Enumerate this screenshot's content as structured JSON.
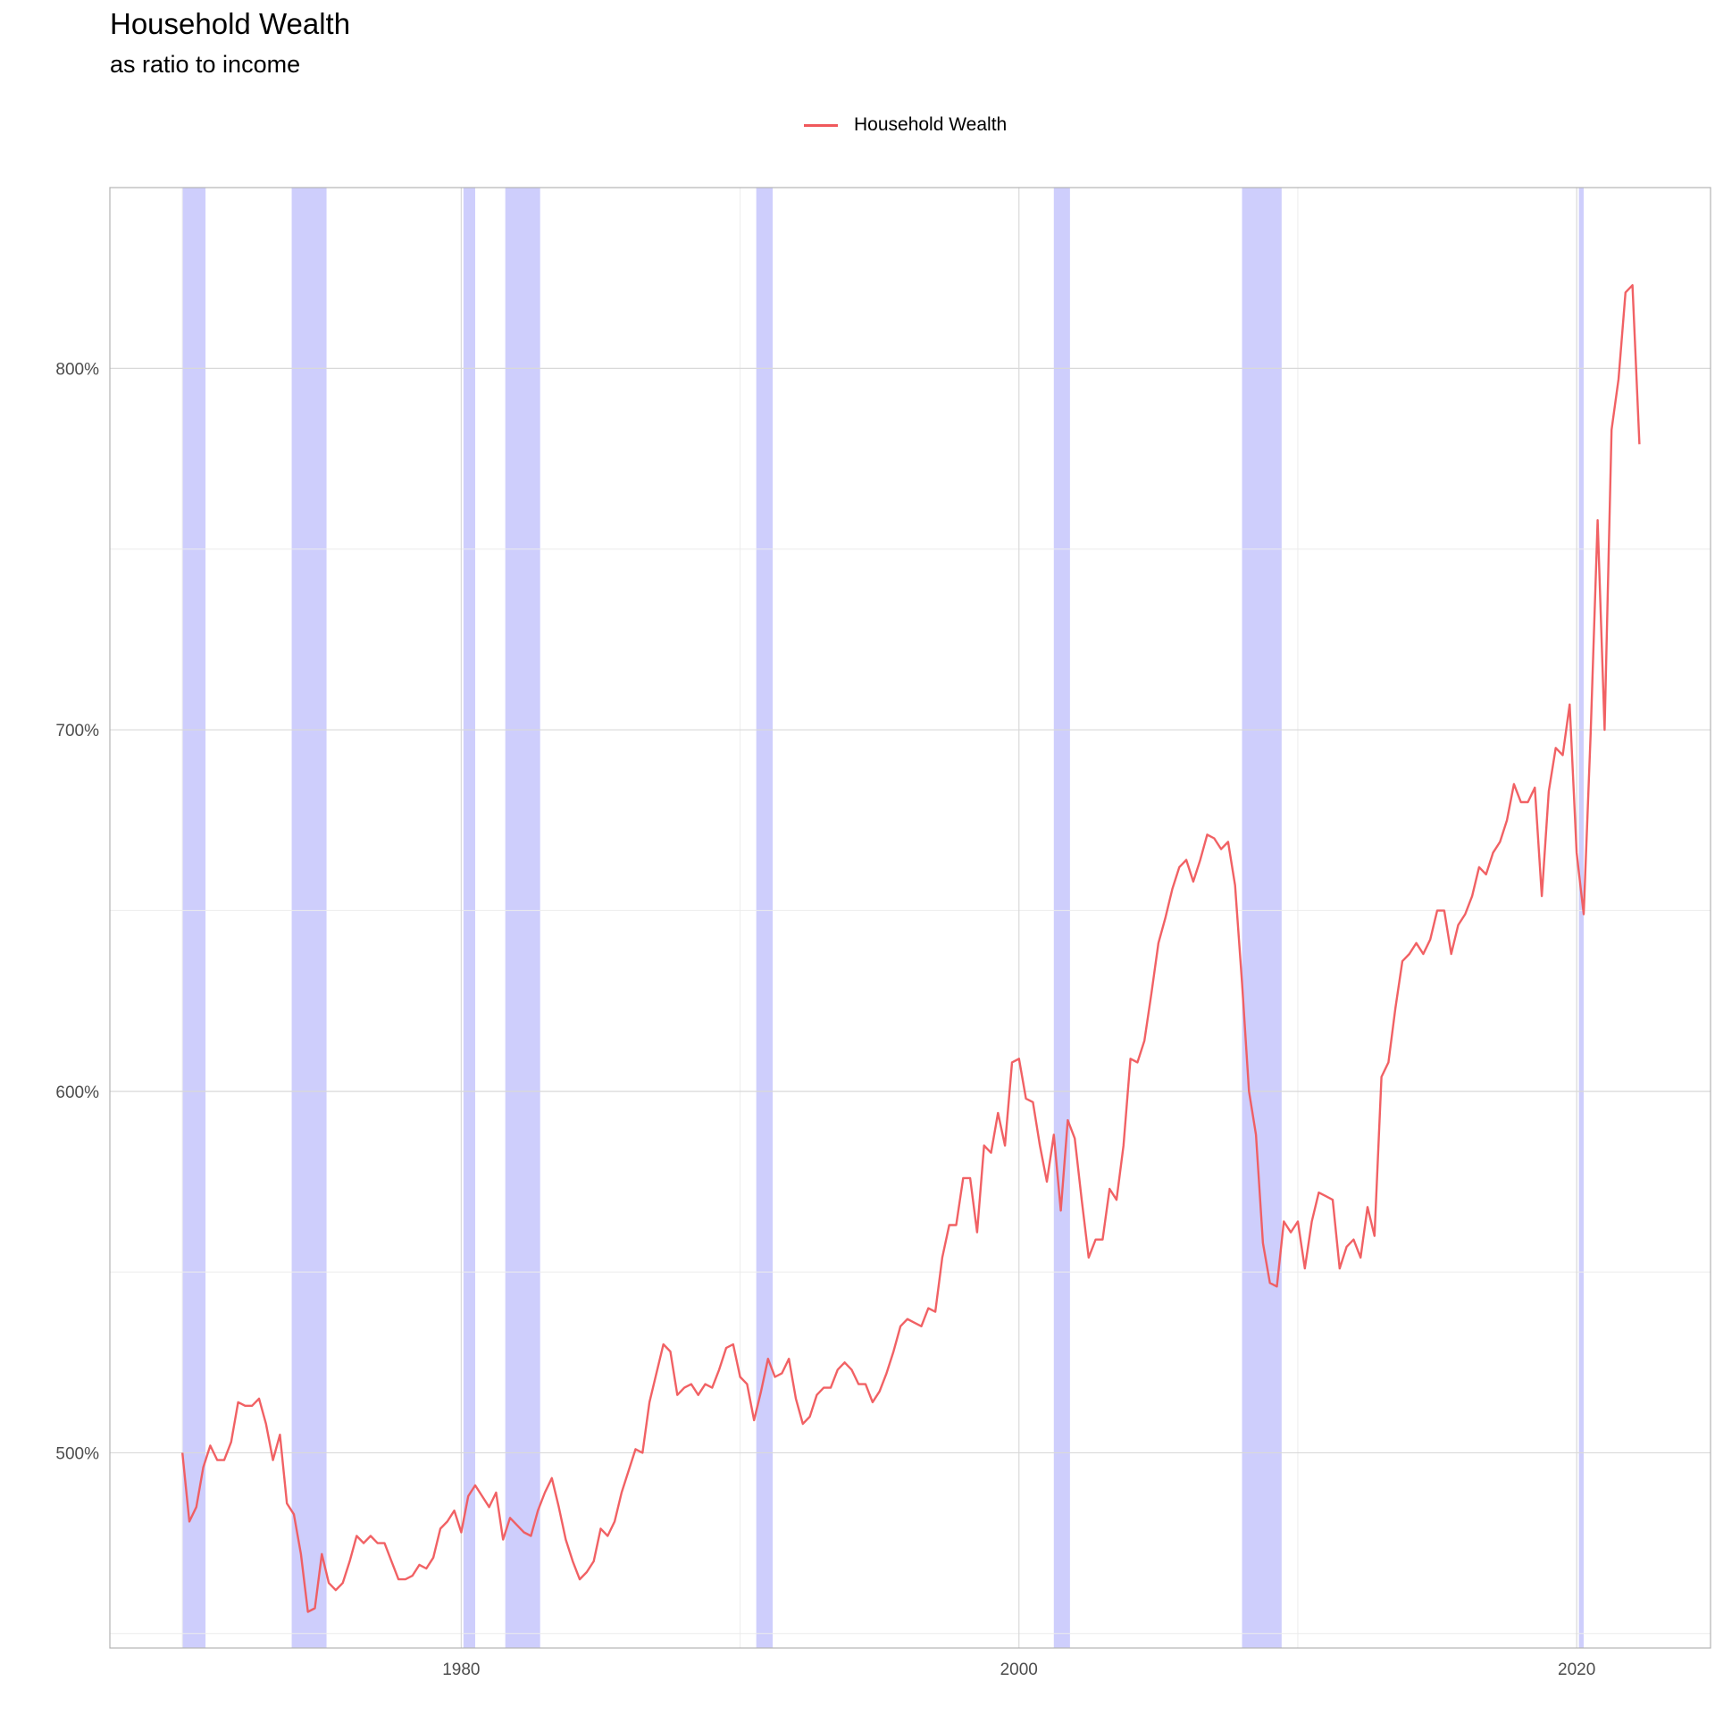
{
  "chart_data": {
    "type": "line",
    "title": "Household Wealth",
    "subtitle": "as ratio to income",
    "xlabel": "",
    "ylabel": "",
    "xlim": [
      1967.4,
      2024.8
    ],
    "ylim": [
      446,
      850
    ],
    "x_ticks": [
      1980,
      2000,
      2020
    ],
    "x_tick_labels": [
      "1980",
      "2000",
      "2020"
    ],
    "y_ticks": [
      500,
      600,
      700,
      800
    ],
    "y_tick_labels": [
      "500%",
      "600%",
      "700%",
      "800%"
    ],
    "grid": true,
    "legend": {
      "position": "top",
      "entries": [
        "Household Wealth"
      ]
    },
    "colors": {
      "line": "#f0595c",
      "recession": "#c5c5fb",
      "grid": "#d9d9d9"
    },
    "recessions": [
      [
        1970.0,
        1970.83
      ],
      [
        1973.92,
        1975.17
      ],
      [
        1980.08,
        1980.5
      ],
      [
        1981.58,
        1982.83
      ],
      [
        1990.58,
        1991.17
      ],
      [
        2001.25,
        2001.83
      ],
      [
        2008.0,
        2009.42
      ],
      [
        2020.08,
        2020.25
      ]
    ],
    "series": [
      {
        "name": "Household Wealth",
        "x": [
          1970.0,
          1970.25,
          1970.5,
          1970.75,
          1971.0,
          1971.25,
          1971.5,
          1971.75,
          1972.0,
          1972.25,
          1972.5,
          1972.75,
          1973.0,
          1973.25,
          1973.5,
          1973.75,
          1974.0,
          1974.25,
          1974.5,
          1974.75,
          1975.0,
          1975.25,
          1975.5,
          1975.75,
          1976.0,
          1976.25,
          1976.5,
          1976.75,
          1977.0,
          1977.25,
          1977.5,
          1977.75,
          1978.0,
          1978.25,
          1978.5,
          1978.75,
          1979.0,
          1979.25,
          1979.5,
          1979.75,
          1980.0,
          1980.25,
          1980.5,
          1980.75,
          1981.0,
          1981.25,
          1981.5,
          1981.75,
          1982.0,
          1982.25,
          1982.5,
          1982.75,
          1983.0,
          1983.25,
          1983.5,
          1983.75,
          1984.0,
          1984.25,
          1984.5,
          1984.75,
          1985.0,
          1985.25,
          1985.5,
          1985.75,
          1986.0,
          1986.25,
          1986.5,
          1986.75,
          1987.0,
          1987.25,
          1987.5,
          1987.75,
          1988.0,
          1988.25,
          1988.5,
          1988.75,
          1989.0,
          1989.25,
          1989.5,
          1989.75,
          1990.0,
          1990.25,
          1990.5,
          1990.75,
          1991.0,
          1991.25,
          1991.5,
          1991.75,
          1992.0,
          1992.25,
          1992.5,
          1992.75,
          1993.0,
          1993.25,
          1993.5,
          1993.75,
          1994.0,
          1994.25,
          1994.5,
          1994.75,
          1995.0,
          1995.25,
          1995.5,
          1995.75,
          1996.0,
          1996.25,
          1996.5,
          1996.75,
          1997.0,
          1997.25,
          1997.5,
          1997.75,
          1998.0,
          1998.25,
          1998.5,
          1998.75,
          1999.0,
          1999.25,
          1999.5,
          1999.75,
          2000.0,
          2000.25,
          2000.5,
          2000.75,
          2001.0,
          2001.25,
          2001.5,
          2001.75,
          2002.0,
          2002.25,
          2002.5,
          2002.75,
          2003.0,
          2003.25,
          2003.5,
          2003.75,
          2004.0,
          2004.25,
          2004.5,
          2004.75,
          2005.0,
          2005.25,
          2005.5,
          2005.75,
          2006.0,
          2006.25,
          2006.5,
          2006.75,
          2007.0,
          2007.25,
          2007.5,
          2007.75,
          2008.0,
          2008.25,
          2008.5,
          2008.75,
          2009.0,
          2009.25,
          2009.5,
          2009.75,
          2010.0,
          2010.25,
          2010.5,
          2010.75,
          2011.0,
          2011.25,
          2011.5,
          2011.75,
          2012.0,
          2012.25,
          2012.5,
          2012.75,
          2013.0,
          2013.25,
          2013.5,
          2013.75,
          2014.0,
          2014.25,
          2014.5,
          2014.75,
          2015.0,
          2015.25,
          2015.5,
          2015.75,
          2016.0,
          2016.25,
          2016.5,
          2016.75,
          2017.0,
          2017.25,
          2017.5,
          2017.75,
          2018.0,
          2018.25,
          2018.5,
          2018.75,
          2019.0,
          2019.25,
          2019.5,
          2019.75,
          2020.0,
          2020.25,
          2020.5,
          2020.75,
          2021.0,
          2021.25,
          2021.5,
          2021.75,
          2022.0,
          2022.25
        ],
        "values": [
          500,
          481,
          485,
          496,
          502,
          498,
          498,
          503,
          514,
          513,
          513,
          515,
          508,
          498,
          505,
          486,
          483,
          472,
          456,
          457,
          472,
          464,
          462,
          464,
          470,
          477,
          475,
          477,
          475,
          475,
          470,
          465,
          465,
          466,
          469,
          468,
          471,
          479,
          481,
          484,
          478,
          488,
          491,
          488,
          485,
          489,
          476,
          482,
          480,
          478,
          477,
          484,
          489,
          493,
          485,
          476,
          470,
          465,
          467,
          470,
          479,
          477,
          481,
          489,
          495,
          501,
          500,
          514,
          522,
          530,
          528,
          516,
          518,
          519,
          516,
          519,
          518,
          523,
          529,
          530,
          521,
          519,
          509,
          517,
          526,
          521,
          522,
          526,
          515,
          508,
          510,
          516,
          518,
          518,
          523,
          525,
          523,
          519,
          519,
          514,
          517,
          522,
          528,
          535,
          537,
          536,
          535,
          540,
          539,
          554,
          563,
          563,
          576,
          576,
          561,
          585,
          583,
          594,
          585,
          608,
          609,
          598,
          597,
          585,
          575,
          588,
          567,
          592,
          587,
          570,
          554,
          559,
          559,
          573,
          570,
          585,
          609,
          608,
          614,
          627,
          641,
          648,
          656,
          662,
          664,
          658,
          664,
          671,
          670,
          667,
          669,
          657,
          630,
          600,
          588,
          558,
          547,
          546,
          564,
          561,
          564,
          551,
          564,
          572,
          571,
          570,
          551,
          557,
          559,
          554,
          568,
          560,
          604,
          608,
          623,
          636,
          638,
          641,
          638,
          642,
          650,
          650,
          638,
          646,
          649,
          654,
          662,
          660,
          666,
          669,
          675,
          685,
          680,
          680,
          684,
          654,
          683,
          695,
          693,
          707,
          666,
          649,
          699,
          758,
          700,
          783,
          797,
          821,
          823,
          779
        ]
      }
    ]
  }
}
